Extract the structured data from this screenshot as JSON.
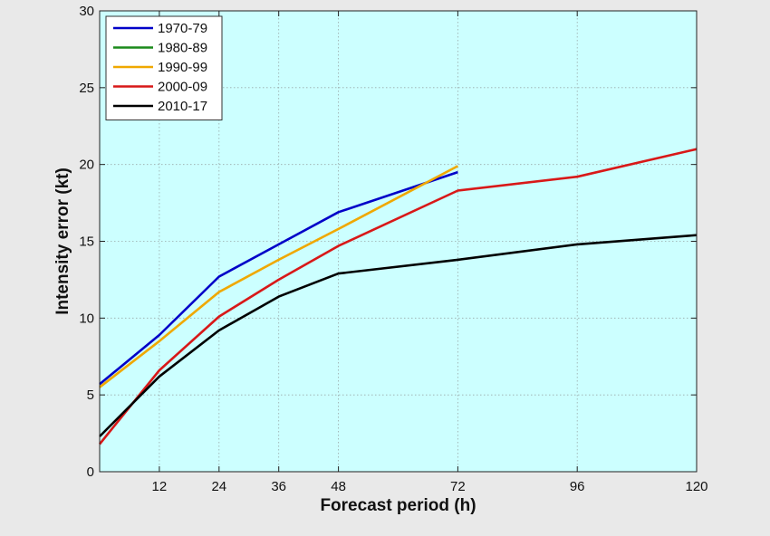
{
  "chart_data": {
    "type": "line",
    "title": "",
    "xlabel": "Forecast period (h)",
    "ylabel": "Intensity error (kt)",
    "xlim": [
      0,
      120
    ],
    "ylim": [
      0,
      30
    ],
    "x_ticks": [
      12,
      24,
      36,
      48,
      72,
      96,
      120
    ],
    "y_ticks": [
      0,
      5,
      10,
      15,
      20,
      25,
      30
    ],
    "grid": true,
    "legend_position": "top-left",
    "plot_background": "#ccffff",
    "series": [
      {
        "name": "1970-79",
        "color": "#0000c8",
        "x": [
          0,
          12,
          24,
          36,
          48,
          72
        ],
        "y": [
          5.7,
          8.9,
          12.7,
          14.8,
          16.9,
          19.5
        ]
      },
      {
        "name": "1980-89",
        "color": "#1a8a1a",
        "x": [],
        "y": []
      },
      {
        "name": "1990-99",
        "color": "#f0a800",
        "x": [
          0,
          12,
          24,
          36,
          48,
          72
        ],
        "y": [
          5.5,
          8.5,
          11.7,
          13.8,
          15.8,
          19.9
        ]
      },
      {
        "name": "2000-09",
        "color": "#d81818",
        "x": [
          0,
          12,
          24,
          36,
          48,
          72,
          96,
          120
        ],
        "y": [
          1.8,
          6.6,
          10.1,
          12.5,
          14.7,
          18.3,
          19.2,
          21.0
        ]
      },
      {
        "name": "2010-17",
        "color": "#000000",
        "x": [
          0,
          12,
          24,
          36,
          48,
          72,
          96,
          120
        ],
        "y": [
          2.3,
          6.2,
          9.2,
          11.4,
          12.9,
          13.8,
          14.8,
          15.4
        ]
      }
    ]
  }
}
